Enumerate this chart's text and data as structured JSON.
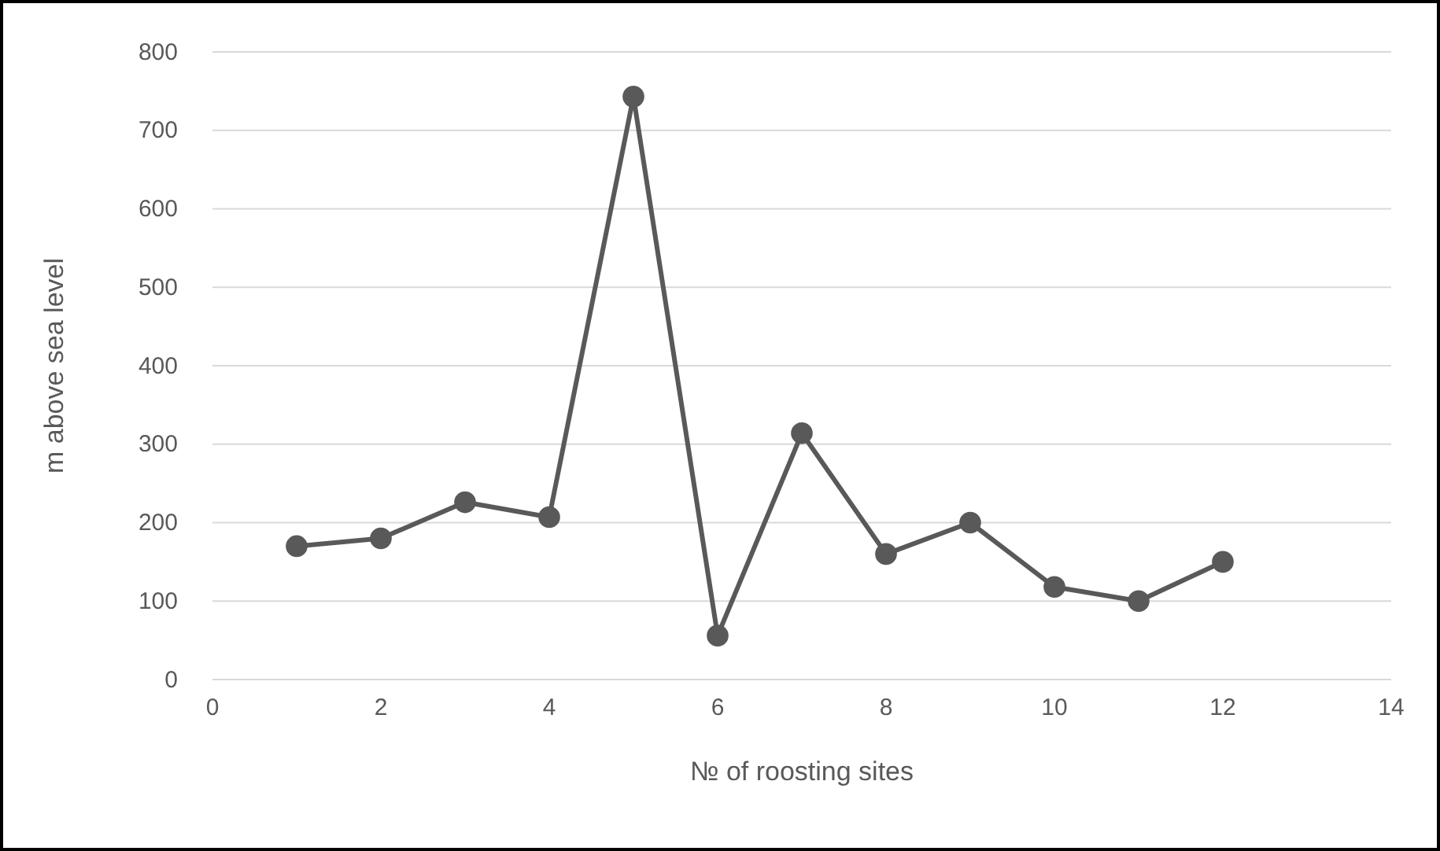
{
  "chart_data": {
    "type": "line",
    "xlabel": "№ of roosting sites",
    "ylabel": "m above sea level",
    "x": [
      1,
      2,
      3,
      4,
      5,
      6,
      7,
      8,
      9,
      10,
      11,
      12
    ],
    "series": [
      {
        "color": "#595959",
        "values": [
          170,
          180,
          226,
          207,
          743,
          56,
          314,
          160,
          200,
          118,
          100,
          150
        ]
      }
    ],
    "xlim": [
      0,
      14
    ],
    "xticks": [
      0,
      2,
      4,
      6,
      8,
      10,
      12,
      14
    ],
    "ylim": [
      0,
      800
    ],
    "yticks": [
      0,
      100,
      200,
      300,
      400,
      500,
      600,
      700,
      800
    ],
    "grid": "y",
    "marker": "circle",
    "line_style": "solid"
  }
}
